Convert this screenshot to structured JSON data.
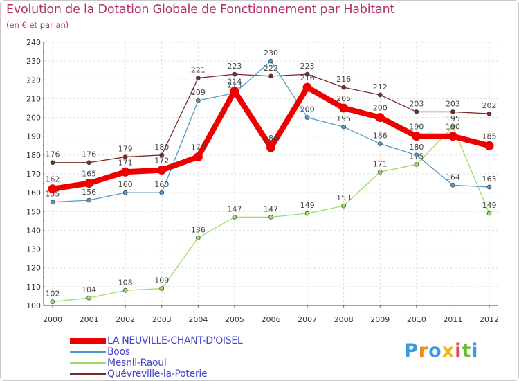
{
  "header": {
    "title": "Evolution de la Dotation Globale de Fonctionnement par Habitant",
    "subtitle": "(en € et par an)"
  },
  "logo": {
    "letters": [
      "P",
      "r",
      "o",
      "x",
      "i",
      "t",
      "i"
    ],
    "colors": [
      "#3b9be0",
      "#f08a1c",
      "#3b9be0",
      "#f0b41c",
      "#e04848",
      "#6ab83a",
      "#3b9be0"
    ]
  },
  "chart_data": {
    "type": "line",
    "title": "Evolution de la Dotation Globale de Fonctionnement par Habitant",
    "subtitle": "(en € et par an)",
    "xlabel": "",
    "ylabel": "",
    "categories": [
      "2000",
      "2001",
      "2002",
      "2003",
      "2004",
      "2005",
      "2006",
      "2007",
      "2008",
      "2009",
      "2010",
      "2011",
      "2012"
    ],
    "ylim": [
      100,
      240
    ],
    "yticks": [
      100,
      110,
      120,
      130,
      140,
      150,
      160,
      170,
      180,
      190,
      200,
      210,
      220,
      230,
      240
    ],
    "grid": true,
    "legend_position": "bottom-left",
    "series": [
      {
        "name": "Quévreville-la-Poterie",
        "color": "#7a2a2a",
        "width": "thin",
        "values": [
          176,
          176,
          179,
          180,
          221,
          223,
          222,
          223,
          216,
          212,
          203,
          203,
          202
        ]
      },
      {
        "name": "Mesnil-Raoul",
        "color": "#99dd66",
        "width": "thin",
        "values": [
          102,
          104,
          108,
          109,
          136,
          147,
          147,
          149,
          153,
          171,
          175,
          195,
          149
        ]
      },
      {
        "name": "Boos",
        "color": "#5599cc",
        "width": "thin",
        "values": [
          155,
          156,
          160,
          160,
          209,
          213,
          230,
          200,
          195,
          186,
          180,
          164,
          163
        ]
      },
      {
        "name": "LA NEUVILLE-CHANT-D'OISEL",
        "color": "#ee0000",
        "width": "thick",
        "values": [
          162,
          165,
          171,
          172,
          179,
          214,
          184,
          216,
          205,
          200,
          190,
          190,
          185
        ]
      }
    ],
    "legend_order": [
      "LA NEUVILLE-CHANT-D'OISEL",
      "Boos",
      "Mesnil-Raoul",
      "Quévreville-la-Poterie"
    ]
  }
}
